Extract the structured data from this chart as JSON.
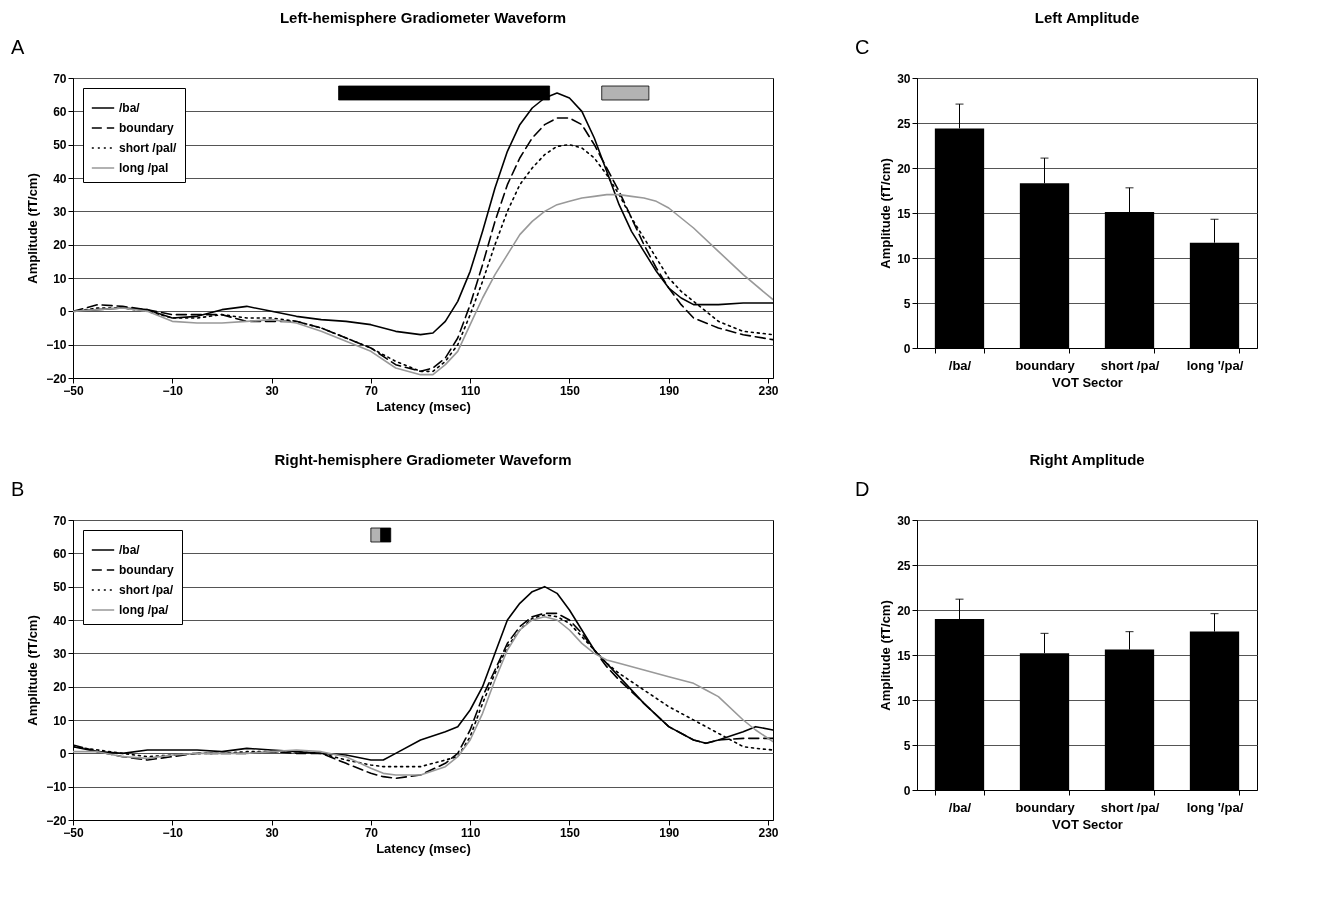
{
  "chart_data": [
    {
      "type": "line",
      "title": "Left-hemisphere Gradiometer Waveform",
      "xlabel": "Latency (msec)",
      "ylabel": "Amplitude (fT/cm)",
      "annotations": [
        "A"
      ],
      "legend": "top left",
      "grid": "y",
      "xlim": [
        -50,
        232
      ],
      "xticks": [
        -50,
        -10,
        30,
        70,
        110,
        150,
        190,
        230
      ],
      "ylim": [
        -20,
        70
      ],
      "yticks": [
        -20,
        -10,
        0,
        10,
        20,
        30,
        40,
        50,
        60,
        70
      ],
      "x": [
        -50,
        -40,
        -30,
        -20,
        -10,
        0,
        10,
        20,
        30,
        40,
        50,
        60,
        70,
        80,
        90,
        95,
        100,
        105,
        110,
        115,
        120,
        125,
        130,
        135,
        140,
        145,
        150,
        155,
        160,
        165,
        170,
        175,
        180,
        185,
        190,
        195,
        200,
        210,
        220,
        232
      ],
      "bands": [
        {
          "axis": "x",
          "from": 57,
          "to": 142,
          "color": "#000000"
        },
        {
          "axis": "x",
          "from": 163,
          "to": 182,
          "color": "#b3b3b3"
        }
      ],
      "series": [
        {
          "name": "/ba/",
          "color": "#000000",
          "line_style": "solid",
          "values": [
            0,
            0.5,
            1,
            0.5,
            -2,
            -1.5,
            0.5,
            1.5,
            0,
            -1.5,
            -2.5,
            -3,
            -4,
            -6,
            -7,
            -6.5,
            -3,
            3,
            12,
            24,
            37,
            48,
            56,
            61,
            64,
            65.5,
            64,
            60,
            52,
            42,
            32,
            24,
            18,
            12,
            7,
            4,
            2,
            2,
            2.5,
            2.5
          ]
        },
        {
          "name": "boundary",
          "color": "#000000",
          "line_style": "dashed",
          "values": [
            0,
            2,
            1.5,
            0.5,
            -1,
            -1,
            -1,
            -3,
            -3,
            -3,
            -5,
            -8,
            -11,
            -16,
            -18,
            -17,
            -14,
            -8,
            2,
            14,
            27,
            38,
            46,
            52,
            56,
            58,
            58,
            56,
            50,
            43,
            36,
            28,
            20,
            13,
            7,
            2,
            -2,
            -5,
            -7,
            -8.5
          ]
        },
        {
          "name": "short /pal/",
          "color": "#000000",
          "line_style": "dotted",
          "values": [
            0,
            1,
            1,
            0,
            -2,
            -2,
            -1,
            -2,
            -2,
            -3,
            -5,
            -8,
            -11,
            -15,
            -18,
            -18,
            -15,
            -10,
            -1,
            9,
            20,
            30,
            38,
            43,
            47,
            49.5,
            50,
            49,
            46,
            41,
            35,
            28,
            22,
            16,
            10,
            6,
            3,
            -3,
            -6,
            -7
          ]
        },
        {
          "name": "long /pal",
          "color": "#999999",
          "line_style": "solid",
          "values": [
            0,
            0.5,
            1,
            0,
            -3,
            -3.5,
            -3.5,
            -3,
            -2.5,
            -3.5,
            -6,
            -9,
            -12,
            -17,
            -19,
            -19,
            -16,
            -12,
            -4,
            4,
            11,
            17,
            23,
            27,
            30,
            32,
            33,
            34,
            34.5,
            35,
            35,
            34.5,
            34,
            33,
            31,
            28,
            25,
            18,
            11,
            3.5
          ]
        }
      ]
    },
    {
      "type": "bar",
      "title": "Left Amplitude",
      "xlabel": "VOT Sector",
      "ylabel": "Amplitude (fT/cm)",
      "annotations": [
        "C"
      ],
      "grid": "y",
      "color": "#000000",
      "categories": [
        "/ba/",
        "boundary",
        "short /pa/",
        "long '/pa/"
      ],
      "values": [
        24.4,
        18.3,
        15.1,
        11.7
      ],
      "errors": [
        [
          24.4,
          27.1
        ],
        [
          18.3,
          21.1
        ],
        [
          15.1,
          17.8
        ],
        [
          11.7,
          14.3
        ]
      ],
      "ylim": [
        0,
        30
      ],
      "yticks": [
        0,
        5,
        10,
        15,
        20,
        25,
        30
      ]
    },
    {
      "type": "line",
      "title": "Right-hemisphere Gradiometer Waveform",
      "xlabel": "Latency (msec)",
      "ylabel": "Amplitude (fT/cm)",
      "annotations": [
        "B"
      ],
      "legend": "top left",
      "grid": "y",
      "xlim": [
        -50,
        232
      ],
      "xticks": [
        -50,
        -10,
        30,
        70,
        110,
        150,
        190,
        230
      ],
      "ylim": [
        -20,
        70
      ],
      "yticks": [
        -20,
        -10,
        0,
        10,
        20,
        30,
        40,
        50,
        60,
        70
      ],
      "x": [
        -50,
        -40,
        -30,
        -20,
        -10,
        0,
        10,
        20,
        30,
        40,
        50,
        60,
        70,
        75,
        80,
        90,
        100,
        105,
        110,
        115,
        120,
        125,
        130,
        135,
        140,
        145,
        150,
        155,
        160,
        165,
        170,
        180,
        190,
        200,
        205,
        210,
        220,
        225,
        232
      ],
      "bands": [
        {
          "axis": "x",
          "from": 70,
          "to": 74,
          "color": "#b3b3b3"
        },
        {
          "axis": "x",
          "from": 74,
          "to": 78,
          "color": "#000000"
        }
      ],
      "series": [
        {
          "name": "/ba/",
          "color": "#000000",
          "line_style": "solid",
          "values": [
            2,
            0.5,
            0,
            1,
            1,
            1,
            0.5,
            1.5,
            1,
            0.5,
            0,
            -0.5,
            -2,
            -2,
            0,
            4,
            6.5,
            8,
            13,
            20,
            30,
            40,
            45,
            48.5,
            50,
            48,
            43,
            37,
            31,
            27,
            23,
            15,
            8,
            4,
            3,
            4,
            6.5,
            8,
            7
          ]
        },
        {
          "name": "boundary",
          "color": "#000000",
          "line_style": "dashed",
          "values": [
            2.5,
            0.5,
            -1,
            -2,
            -1,
            0,
            0,
            0,
            0.5,
            0,
            0,
            -3,
            -6,
            -7,
            -7.5,
            -6.5,
            -3,
            0,
            7,
            17,
            25,
            33,
            38,
            41,
            42,
            42,
            40,
            36,
            31,
            26,
            22,
            15,
            8,
            4,
            3,
            4,
            4.5,
            4.5,
            4.5
          ]
        },
        {
          "name": "short /pa/",
          "color": "#000000",
          "line_style": "dotted",
          "values": [
            2,
            1,
            0,
            -1,
            -0.5,
            0,
            0,
            0.5,
            0.5,
            0.5,
            0,
            -2,
            -3.5,
            -4,
            -4,
            -4,
            -2,
            -1,
            5,
            15,
            24,
            32,
            37,
            40.5,
            41.5,
            41,
            39,
            35,
            31,
            27,
            24,
            19,
            14,
            10,
            8,
            6,
            2,
            1.5,
            1
          ]
        },
        {
          "name": "long /pa/",
          "color": "#999999",
          "line_style": "solid",
          "values": [
            0.5,
            0.5,
            -1,
            -1.5,
            -0.5,
            0,
            0,
            0,
            0.5,
            1,
            0.5,
            -1,
            -4.5,
            -6,
            -6.5,
            -6.5,
            -4,
            -1,
            4,
            12,
            22,
            31,
            37,
            40,
            41,
            40,
            37,
            33,
            30,
            28,
            27,
            25,
            23,
            21,
            19,
            17,
            10,
            7,
            3.5
          ]
        }
      ]
    },
    {
      "type": "bar",
      "title": "Right Amplitude",
      "xlabel": "VOT Sector",
      "ylabel": "Amplitude (fT/cm)",
      "annotations": [
        "D"
      ],
      "grid": "y",
      "color": "#000000",
      "categories": [
        "/ba/",
        "boundary",
        "short /pa/",
        "long '/pa/"
      ],
      "values": [
        19.0,
        15.2,
        15.6,
        17.6
      ],
      "errors": [
        [
          19.0,
          21.2
        ],
        [
          15.2,
          17.4
        ],
        [
          15.6,
          17.6
        ],
        [
          17.6,
          19.6
        ]
      ],
      "ylim": [
        0,
        30
      ],
      "yticks": [
        0,
        5,
        10,
        15,
        20,
        25,
        30
      ]
    }
  ]
}
